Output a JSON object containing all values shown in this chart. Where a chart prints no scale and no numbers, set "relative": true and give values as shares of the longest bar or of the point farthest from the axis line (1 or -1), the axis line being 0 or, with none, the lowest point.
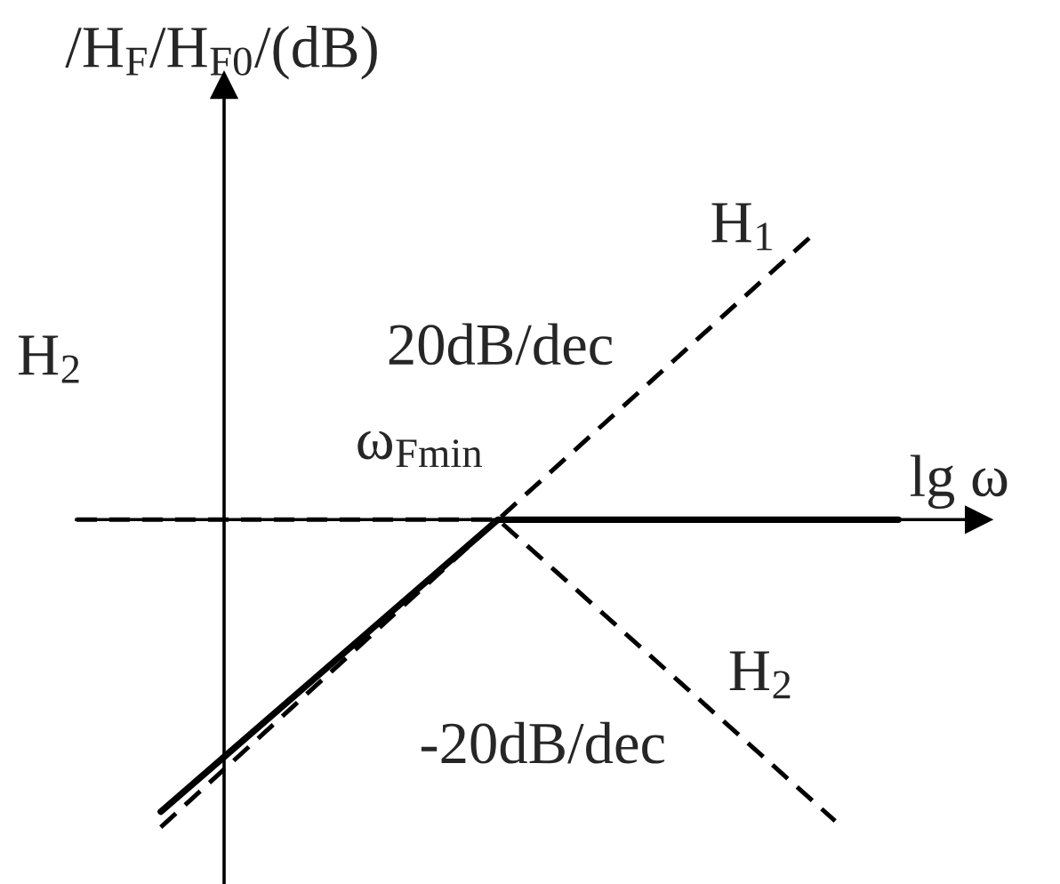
{
  "chart_data": {
    "type": "line",
    "relative": true,
    "ylabel": "/H$_{F}$/H$_{F0}$/(dB)",
    "xlabel": "lg ω",
    "categories": [
      null,
      null,
      null,
      null,
      null,
      null,
      null,
      null,
      null,
      null,
      null,
      null,
      null,
      null,
      null,
      null,
      null,
      null,
      null,
      null,
      null,
      null,
      null,
      null,
      null,
      null,
      null,
      null,
      null,
      null,
      null,
      null,
      null,
      null,
      null,
      null,
      null,
      null,
      null,
      null
    ],
    "series": [
      {
        "color": "#000000",
        "line_style": "solid",
        "values": [
          null,
          null,
          null,
          null,
          -0.95,
          null,
          null,
          null,
          null,
          null,
          null,
          null,
          null,
          null,
          null,
          null,
          null,
          null,
          null,
          null,
          0,
          null,
          null,
          null,
          null,
          null,
          null,
          null,
          null,
          null,
          null,
          null,
          null,
          null,
          null,
          null,
          null,
          null,
          null,
          0
        ]
      },
      {
        "name": "H$_{1}$",
        "color": "#000000",
        "line_style": "dashed",
        "values": [
          null,
          null,
          null,
          null,
          -1,
          null,
          null,
          null,
          null,
          null,
          null,
          null,
          null,
          null,
          null,
          null,
          null,
          null,
          null,
          null,
          0,
          null,
          null,
          null,
          null,
          null,
          null,
          null,
          null,
          null,
          null,
          null,
          null,
          null,
          null,
          0.93,
          null,
          null,
          null,
          null
        ]
      },
      {
        "name": "H$_{2}$",
        "color": "#000000",
        "line_style": "dashed",
        "values": [
          0,
          null,
          null,
          null,
          null,
          null,
          null,
          null,
          null,
          null,
          null,
          null,
          null,
          null,
          null,
          null,
          null,
          null,
          null,
          null,
          0,
          null,
          null,
          null,
          null,
          null,
          null,
          null,
          null,
          null,
          null,
          null,
          null,
          null,
          null,
          null,
          -0.98,
          null,
          null,
          null
        ]
      }
    ],
    "annotations": [
      "20dB/dec",
      "ω$_{Fmin}$",
      "-20dB/dec",
      "H$_{2}$"
    ],
    "legend": false,
    "marker": "none"
  }
}
